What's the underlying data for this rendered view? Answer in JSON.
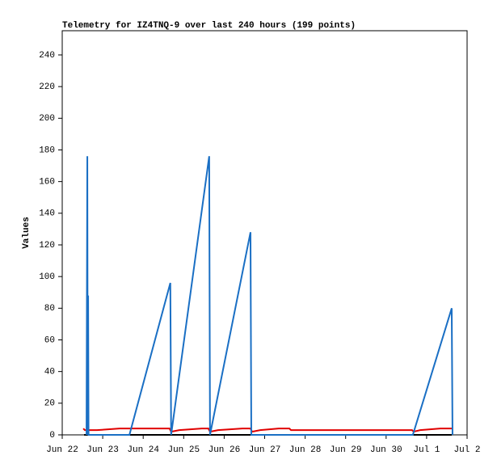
{
  "chart_data": {
    "type": "line",
    "title": "Telemetry for IZ4TNQ-9 over last 240 hours (199 points)",
    "y_label": "Values",
    "xlim": [
      0,
      10
    ],
    "xticks": [
      {
        "value": 0,
        "label": "Jun 22"
      },
      {
        "value": 1,
        "label": "Jun 23"
      },
      {
        "value": 2,
        "label": "Jun 24"
      },
      {
        "value": 3,
        "label": "Jun 25"
      },
      {
        "value": 4,
        "label": "Jun 26"
      },
      {
        "value": 5,
        "label": "Jun 27"
      },
      {
        "value": 6,
        "label": "Jun 28"
      },
      {
        "value": 7,
        "label": "Jun 29"
      },
      {
        "value": 8,
        "label": "Jun 30"
      },
      {
        "value": 9,
        "label": "Jul 1"
      },
      {
        "value": 10,
        "label": "Jul 2"
      }
    ],
    "ylim": [
      0,
      255.3
    ],
    "yticks": [
      0,
      20,
      40,
      60,
      80,
      100,
      120,
      140,
      160,
      180,
      200,
      220,
      240
    ],
    "series": [
      {
        "color": "#1a6fc4",
        "x": [
          0.6,
          0.62,
          0.63,
          0.64,
          0.65,
          1.66,
          2.67,
          2.69,
          3.63,
          3.65,
          4.65,
          4.67,
          8.66,
          9.62,
          9.64
        ],
        "values": [
          0,
          176,
          0,
          88,
          0,
          0,
          96,
          0,
          176,
          0,
          128,
          0,
          0,
          80,
          0
        ]
      },
      {
        "color": "#e00000",
        "x": [
          0.52,
          0.56,
          0.86,
          1.42,
          2.65,
          2.69,
          2.89,
          3.45,
          3.61,
          3.65,
          3.85,
          4.45,
          4.65,
          4.69,
          4.89,
          5.35,
          5.61,
          5.65,
          8.64,
          8.68,
          8.84,
          9.34,
          9.62
        ],
        "values": [
          4,
          3,
          3,
          4,
          4,
          2,
          3,
          4,
          4,
          2,
          3,
          4,
          4,
          2,
          3,
          4,
          4,
          3,
          3,
          2,
          3,
          4,
          4
        ]
      },
      {
        "color": "#000000",
        "x": [
          0.54,
          9.62
        ],
        "values": [
          0,
          0
        ]
      }
    ]
  }
}
